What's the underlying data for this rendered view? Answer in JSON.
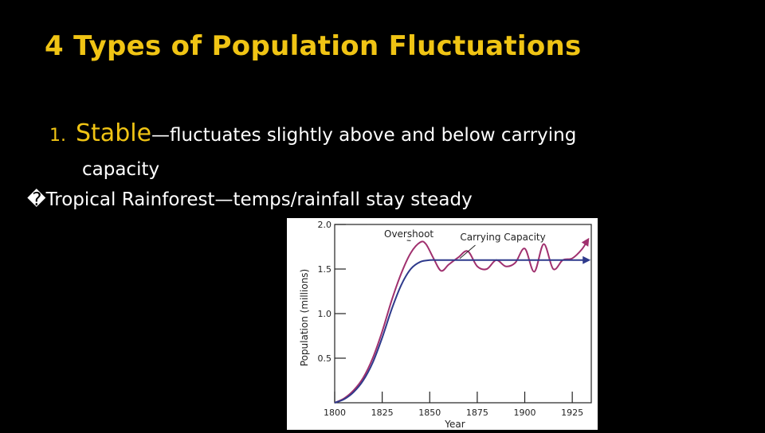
{
  "slide": {
    "title": "4 Types of Population Fluctuations",
    "item_number": "1.",
    "item_keyword": "Stable",
    "item_text": "—fluctuates slightly above and below carrying",
    "item_text_cont": "capacity",
    "sub_bullet_glyph": "�",
    "sub_bullet_text": "Tropical Rainforest—temps/rainfall stay steady"
  },
  "colors": {
    "background": "#000000",
    "title": "#f0c414",
    "text": "#ffffff",
    "population_line": "#a0306e",
    "capacity_line": "#2e3a8c"
  },
  "chart_data": {
    "type": "line",
    "xlabel": "Year",
    "ylabel": "Population (millions)",
    "xlim": [
      1800,
      1935
    ],
    "ylim": [
      0,
      2.0
    ],
    "x_ticks": [
      1800,
      1825,
      1850,
      1875,
      1900,
      1925
    ],
    "y_ticks": [
      0.5,
      1.0,
      1.5,
      2.0
    ],
    "x_tick_labels": [
      "1800",
      "1825",
      "1850",
      "1875",
      "1900",
      "1925"
    ],
    "y_tick_labels": [
      "0.5",
      "1.0",
      "1.5",
      "2.0"
    ],
    "annotations": [
      {
        "text": "Overshoot",
        "x": 1840,
        "y": 1.8
      },
      {
        "text": "Carrying Capacity",
        "x": 1865,
        "y": 1.6
      }
    ],
    "series": [
      {
        "x": [
          1800,
          1805,
          1810,
          1815,
          1820,
          1825,
          1830,
          1835,
          1840,
          1845,
          1848,
          1852,
          1856,
          1860,
          1865,
          1870,
          1875,
          1880,
          1885,
          1890,
          1895,
          1900,
          1905,
          1910,
          1915,
          1920,
          1925,
          1930,
          1933
        ],
        "y": [
          0.0,
          0.05,
          0.14,
          0.28,
          0.5,
          0.8,
          1.15,
          1.45,
          1.68,
          1.8,
          1.78,
          1.62,
          1.48,
          1.55,
          1.63,
          1.7,
          1.53,
          1.5,
          1.6,
          1.53,
          1.57,
          1.73,
          1.47,
          1.78,
          1.5,
          1.6,
          1.62,
          1.72,
          1.82
        ]
      },
      {
        "x": [
          1800,
          1805,
          1810,
          1815,
          1820,
          1825,
          1830,
          1835,
          1840,
          1845,
          1850,
          1855,
          1860,
          1880,
          1900,
          1920,
          1933
        ],
        "y": [
          0.0,
          0.04,
          0.12,
          0.25,
          0.45,
          0.73,
          1.05,
          1.32,
          1.5,
          1.58,
          1.6,
          1.6,
          1.6,
          1.6,
          1.6,
          1.6,
          1.6
        ]
      }
    ]
  }
}
